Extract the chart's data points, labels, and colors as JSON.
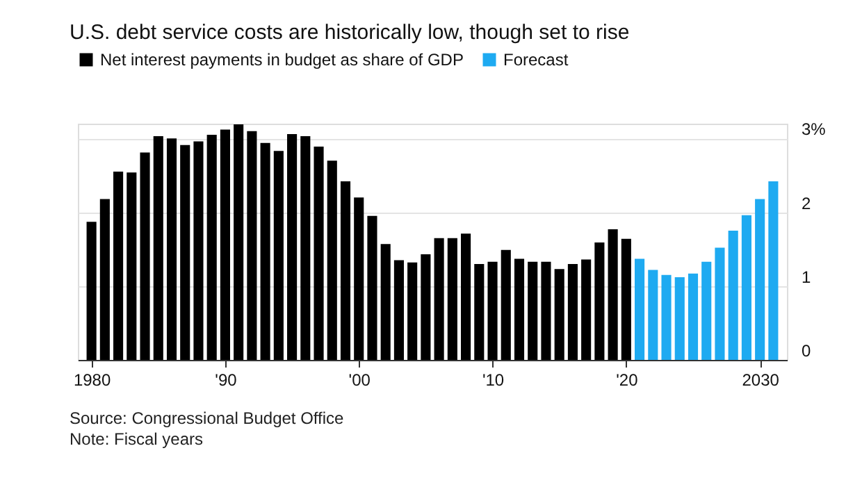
{
  "chart_data": {
    "type": "bar",
    "title": "U.S. debt service costs are historically low, though set to rise",
    "series": [
      {
        "name": "Net interest payments in budget as share of GDP",
        "color": "#000000",
        "x": [
          1980,
          1981,
          1982,
          1983,
          1984,
          1985,
          1986,
          1987,
          1988,
          1989,
          1990,
          1991,
          1992,
          1993,
          1994,
          1995,
          1996,
          1997,
          1998,
          1999,
          2000,
          2001,
          2002,
          2003,
          2004,
          2005,
          2006,
          2007,
          2008,
          2009,
          2010,
          2011,
          2012,
          2013,
          2014,
          2015,
          2016,
          2017,
          2018,
          2019,
          2020
        ],
        "values": [
          1.87,
          2.18,
          2.55,
          2.54,
          2.81,
          3.03,
          3.0,
          2.91,
          2.96,
          3.05,
          3.12,
          3.19,
          3.1,
          2.94,
          2.83,
          3.06,
          3.03,
          2.89,
          2.7,
          2.42,
          2.2,
          1.95,
          1.57,
          1.35,
          1.32,
          1.43,
          1.65,
          1.65,
          1.71,
          1.3,
          1.33,
          1.49,
          1.37,
          1.33,
          1.33,
          1.23,
          1.3,
          1.36,
          1.59,
          1.77,
          1.64
        ]
      },
      {
        "name": "Forecast",
        "color": "#1eaaf1",
        "x": [
          2021,
          2022,
          2023,
          2024,
          2025,
          2026,
          2027,
          2028,
          2029,
          2030,
          2031
        ],
        "values": [
          1.37,
          1.22,
          1.15,
          1.12,
          1.17,
          1.33,
          1.52,
          1.75,
          1.96,
          2.18,
          2.42
        ]
      }
    ],
    "xlim": [
      1979.5,
      2031.5
    ],
    "xticks": [
      1980,
      {
        "value": 1990,
        "label": "'90"
      },
      {
        "value": 2000,
        "label": "'00"
      },
      {
        "value": 2010,
        "label": "'10"
      },
      {
        "value": 2020,
        "label": "'20"
      },
      2030
    ],
    "ylim": [
      0,
      3.2
    ],
    "yticks": [
      0,
      1,
      2,
      {
        "value": 3,
        "label": "3%"
      }
    ],
    "grid": "y",
    "legend": "top left",
    "annotations": [
      "Source: Congressional Budget Office",
      "Note: Fiscal years"
    ]
  }
}
